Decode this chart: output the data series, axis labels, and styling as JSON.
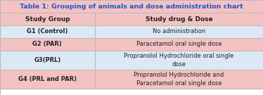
{
  "title": "Table 1: Grouping of animals and dose administration chart",
  "title_color": "#2255CC",
  "title_bg": "#f4c2c2",
  "header": [
    "Study Group",
    "Study drug & Dose"
  ],
  "header_bg": "#f4c2c2",
  "rows": [
    [
      "G1 (Control)",
      "No administration"
    ],
    [
      "G2 (PAR)",
      "Paracetamol oral single dose"
    ],
    [
      "G3(PRL)",
      "Propranolol Hydrochloride oral single\ndose"
    ],
    [
      "G4 (PRL and PAR)",
      "Propranolol Hydrochloride and\nParacetamol oral single dose"
    ]
  ],
  "row_colors": [
    "#dce9f5",
    "#f4c2c2",
    "#dce9f5",
    "#f4c2c2"
  ],
  "border_color": "#bbbbbb",
  "text_color": "#222222",
  "col_split": 0.36,
  "figwidth": 3.74,
  "figheight": 1.35,
  "dpi": 100,
  "title_fontsize": 6.8,
  "header_fontsize": 6.5,
  "cell_fontsize": 6.0
}
